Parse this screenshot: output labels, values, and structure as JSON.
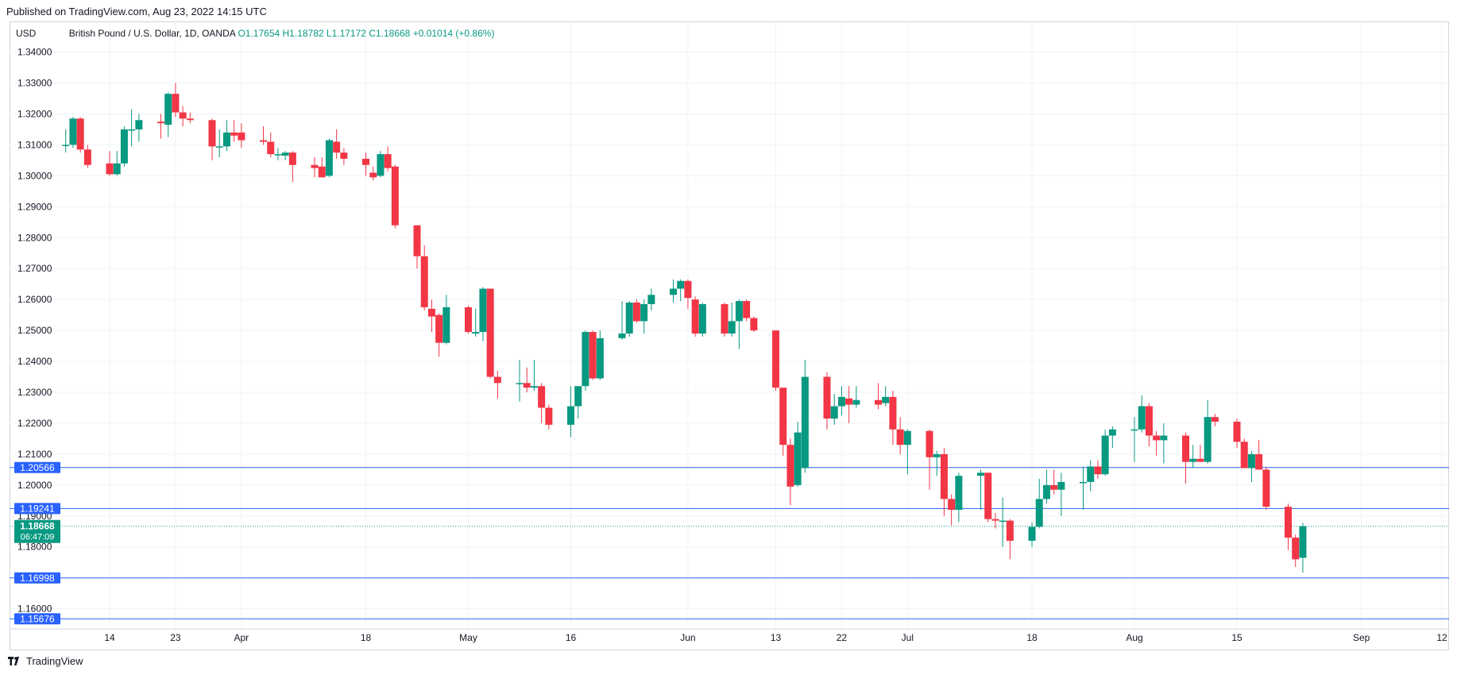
{
  "header": {
    "published": "Published on TradingView.com, Aug 23, 2022 14:15 UTC"
  },
  "legend": {
    "currency": "USD",
    "symbol": "British Pound / U.S. Dollar, 1D, OANDA",
    "open": "O1.17654",
    "high": "H1.18782",
    "low": "L1.17172",
    "close": "C1.18668",
    "change": "+0.01014 (+0.86%)"
  },
  "footer": {
    "brand": "TradingView"
  },
  "colors": {
    "up": "#089981",
    "down": "#f23645",
    "hline": "#2962ff",
    "label_bg": "#2962ff",
    "grid": "#f0f3fa",
    "current_price": "#089981"
  },
  "chart_data": {
    "type": "candlestick",
    "ylim": [
      1.154,
      1.344
    ],
    "y_ticks": [
      "1.34000",
      "1.33000",
      "1.32000",
      "1.31000",
      "1.30000",
      "1.29000",
      "1.28000",
      "1.27000",
      "1.26000",
      "1.25000",
      "1.24000",
      "1.23000",
      "1.22000",
      "1.21000",
      "1.20000",
      "1.19000",
      "1.18000",
      "1.17000",
      "1.16000"
    ],
    "x_ticks": [
      {
        "date": "2022-03-14",
        "label": "14"
      },
      {
        "date": "2022-03-23",
        "label": "23"
      },
      {
        "date": "2022-04-01",
        "label": "Apr"
      },
      {
        "date": "2022-04-18",
        "label": "18"
      },
      {
        "date": "2022-05-02",
        "label": "May"
      },
      {
        "date": "2022-05-16",
        "label": "16"
      },
      {
        "date": "2022-06-01",
        "label": "Jun"
      },
      {
        "date": "2022-06-13",
        "label": "13"
      },
      {
        "date": "2022-06-22",
        "label": "22"
      },
      {
        "date": "2022-07-01",
        "label": "Jul"
      },
      {
        "date": "2022-07-18",
        "label": "18"
      },
      {
        "date": "2022-08-01",
        "label": "Aug"
      },
      {
        "date": "2022-08-15",
        "label": "15"
      },
      {
        "date": "2022-09-01",
        "label": "Sep"
      },
      {
        "date": "2022-09-12",
        "label": "12"
      }
    ],
    "horizontal_lines": [
      {
        "value": 1.20566,
        "label": "1.20566"
      },
      {
        "value": 1.19241,
        "label": "1.19241"
      },
      {
        "value": 1.16998,
        "label": "1.16998"
      },
      {
        "value": 1.15676,
        "label": "1.15676"
      }
    ],
    "current_price": {
      "value": 1.18668,
      "label": "1.18668",
      "countdown": "06:47:09"
    },
    "candles": [
      {
        "date": "2022-03-08",
        "o": 1.31,
        "h": 1.315,
        "l": 1.3075,
        "c": 1.31
      },
      {
        "date": "2022-03-09",
        "o": 1.31,
        "h": 1.319,
        "l": 1.309,
        "c": 1.3185
      },
      {
        "date": "2022-03-10",
        "o": 1.3185,
        "h": 1.319,
        "l": 1.3075,
        "c": 1.3085
      },
      {
        "date": "2022-03-11",
        "o": 1.3085,
        "h": 1.31,
        "l": 1.3025,
        "c": 1.3035
      },
      {
        "date": "2022-03-14",
        "o": 1.304,
        "h": 1.308,
        "l": 1.3,
        "c": 1.3005
      },
      {
        "date": "2022-03-15",
        "o": 1.3005,
        "h": 1.308,
        "l": 1.3,
        "c": 1.304
      },
      {
        "date": "2022-03-16",
        "o": 1.304,
        "h": 1.316,
        "l": 1.303,
        "c": 1.315
      },
      {
        "date": "2022-03-17",
        "o": 1.315,
        "h": 1.3215,
        "l": 1.3095,
        "c": 1.315
      },
      {
        "date": "2022-03-18",
        "o": 1.315,
        "h": 1.32,
        "l": 1.311,
        "c": 1.318
      },
      {
        "date": "2022-03-21",
        "o": 1.3175,
        "h": 1.32,
        "l": 1.312,
        "c": 1.317
      },
      {
        "date": "2022-03-22",
        "o": 1.3165,
        "h": 1.327,
        "l": 1.3125,
        "c": 1.3265
      },
      {
        "date": "2022-03-23",
        "o": 1.3265,
        "h": 1.33,
        "l": 1.319,
        "c": 1.3205
      },
      {
        "date": "2022-03-24",
        "o": 1.3205,
        "h": 1.3225,
        "l": 1.316,
        "c": 1.3185
      },
      {
        "date": "2022-03-25",
        "o": 1.3185,
        "h": 1.3205,
        "l": 1.317,
        "c": 1.318
      },
      {
        "date": "2022-03-28",
        "o": 1.318,
        "h": 1.3185,
        "l": 1.305,
        "c": 1.3095
      },
      {
        "date": "2022-03-29",
        "o": 1.3095,
        "h": 1.315,
        "l": 1.306,
        "c": 1.3095
      },
      {
        "date": "2022-03-30",
        "o": 1.3095,
        "h": 1.318,
        "l": 1.308,
        "c": 1.314
      },
      {
        "date": "2022-03-31",
        "o": 1.314,
        "h": 1.318,
        "l": 1.311,
        "c": 1.313
      },
      {
        "date": "2022-04-01",
        "o": 1.314,
        "h": 1.317,
        "l": 1.309,
        "c": 1.3115
      },
      {
        "date": "2022-04-04",
        "o": 1.3115,
        "h": 1.316,
        "l": 1.31,
        "c": 1.311
      },
      {
        "date": "2022-04-05",
        "o": 1.311,
        "h": 1.314,
        "l": 1.306,
        "c": 1.307
      },
      {
        "date": "2022-04-06",
        "o": 1.307,
        "h": 1.309,
        "l": 1.305,
        "c": 1.307
      },
      {
        "date": "2022-04-07",
        "o": 1.3065,
        "h": 1.308,
        "l": 1.305,
        "c": 1.3075
      },
      {
        "date": "2022-04-08",
        "o": 1.3075,
        "h": 1.308,
        "l": 1.298,
        "c": 1.3035
      },
      {
        "date": "2022-04-11",
        "o": 1.3035,
        "h": 1.306,
        "l": 1.2995,
        "c": 1.3025
      },
      {
        "date": "2022-04-12",
        "o": 1.303,
        "h": 1.306,
        "l": 1.2995,
        "c": 1.2995
      },
      {
        "date": "2022-04-13",
        "o": 1.3,
        "h": 1.312,
        "l": 1.2995,
        "c": 1.3115
      },
      {
        "date": "2022-04-14",
        "o": 1.311,
        "h": 1.315,
        "l": 1.3055,
        "c": 1.3075
      },
      {
        "date": "2022-04-15",
        "o": 1.3075,
        "h": 1.309,
        "l": 1.3035,
        "c": 1.3055
      },
      {
        "date": "2022-04-18",
        "o": 1.3055,
        "h": 1.3075,
        "l": 1.3,
        "c": 1.3035
      },
      {
        "date": "2022-04-19",
        "o": 1.301,
        "h": 1.303,
        "l": 1.2985,
        "c": 1.2995
      },
      {
        "date": "2022-04-20",
        "o": 1.3,
        "h": 1.308,
        "l": 1.2995,
        "c": 1.307
      },
      {
        "date": "2022-04-21",
        "o": 1.307,
        "h": 1.3095,
        "l": 1.3015,
        "c": 1.3025
      },
      {
        "date": "2022-04-22",
        "o": 1.303,
        "h": 1.3035,
        "l": 1.283,
        "c": 1.284
      },
      {
        "date": "2022-04-25",
        "o": 1.284,
        "h": 1.284,
        "l": 1.27,
        "c": 1.274
      },
      {
        "date": "2022-04-26",
        "o": 1.274,
        "h": 1.2775,
        "l": 1.2565,
        "c": 1.2575
      },
      {
        "date": "2022-04-27",
        "o": 1.257,
        "h": 1.26,
        "l": 1.2495,
        "c": 1.2545
      },
      {
        "date": "2022-04-28",
        "o": 1.255,
        "h": 1.2555,
        "l": 1.2415,
        "c": 1.246
      },
      {
        "date": "2022-04-29",
        "o": 1.246,
        "h": 1.2615,
        "l": 1.2455,
        "c": 1.2575
      },
      {
        "date": "2022-05-02",
        "o": 1.2575,
        "h": 1.258,
        "l": 1.249,
        "c": 1.2495
      },
      {
        "date": "2022-05-03",
        "o": 1.249,
        "h": 1.257,
        "l": 1.248,
        "c": 1.2495
      },
      {
        "date": "2022-05-04",
        "o": 1.2495,
        "h": 1.264,
        "l": 1.2465,
        "c": 1.2635
      },
      {
        "date": "2022-05-05",
        "o": 1.2635,
        "h": 1.2635,
        "l": 1.2345,
        "c": 1.235
      },
      {
        "date": "2022-05-06",
        "o": 1.235,
        "h": 1.237,
        "l": 1.228,
        "c": 1.233
      },
      {
        "date": "2022-05-09",
        "o": 1.233,
        "h": 1.2405,
        "l": 1.227,
        "c": 1.233
      },
      {
        "date": "2022-05-10",
        "o": 1.233,
        "h": 1.238,
        "l": 1.23,
        "c": 1.2315
      },
      {
        "date": "2022-05-11",
        "o": 1.2315,
        "h": 1.2405,
        "l": 1.2305,
        "c": 1.232
      },
      {
        "date": "2022-05-12",
        "o": 1.232,
        "h": 1.233,
        "l": 1.22,
        "c": 1.225
      },
      {
        "date": "2022-05-13",
        "o": 1.225,
        "h": 1.226,
        "l": 1.218,
        "c": 1.2195
      },
      {
        "date": "2022-05-16",
        "o": 1.2195,
        "h": 1.232,
        "l": 1.2155,
        "c": 1.2255
      },
      {
        "date": "2022-05-17",
        "o": 1.2255,
        "h": 1.2315,
        "l": 1.2215,
        "c": 1.232
      },
      {
        "date": "2022-05-18",
        "o": 1.232,
        "h": 1.25,
        "l": 1.2305,
        "c": 1.2495
      },
      {
        "date": "2022-05-19",
        "o": 1.2495,
        "h": 1.25,
        "l": 1.234,
        "c": 1.2345
      },
      {
        "date": "2022-05-20",
        "o": 1.2345,
        "h": 1.25,
        "l": 1.234,
        "c": 1.2475
      },
      {
        "date": "2022-05-23",
        "o": 1.2475,
        "h": 1.2595,
        "l": 1.247,
        "c": 1.249
      },
      {
        "date": "2022-05-24",
        "o": 1.249,
        "h": 1.2595,
        "l": 1.248,
        "c": 1.259
      },
      {
        "date": "2022-05-25",
        "o": 1.259,
        "h": 1.26,
        "l": 1.2525,
        "c": 1.253
      },
      {
        "date": "2022-05-26",
        "o": 1.253,
        "h": 1.26,
        "l": 1.249,
        "c": 1.2585
      },
      {
        "date": "2022-05-27",
        "o": 1.2585,
        "h": 1.2635,
        "l": 1.2565,
        "c": 1.2615
      },
      {
        "date": "2022-05-30",
        "o": 1.2615,
        "h": 1.2665,
        "l": 1.259,
        "c": 1.2635
      },
      {
        "date": "2022-05-31",
        "o": 1.2635,
        "h": 1.2665,
        "l": 1.2595,
        "c": 1.266
      },
      {
        "date": "2022-06-01",
        "o": 1.266,
        "h": 1.2665,
        "l": 1.257,
        "c": 1.2605
      },
      {
        "date": "2022-06-02",
        "o": 1.26,
        "h": 1.261,
        "l": 1.248,
        "c": 1.249
      },
      {
        "date": "2022-06-03",
        "o": 1.249,
        "h": 1.259,
        "l": 1.248,
        "c": 1.2585
      },
      {
        "date": "2022-06-06",
        "o": 1.2585,
        "h": 1.259,
        "l": 1.248,
        "c": 1.249
      },
      {
        "date": "2022-06-07",
        "o": 1.249,
        "h": 1.259,
        "l": 1.248,
        "c": 1.253
      },
      {
        "date": "2022-06-08",
        "o": 1.253,
        "h": 1.26,
        "l": 1.244,
        "c": 1.2595
      },
      {
        "date": "2022-06-09",
        "o": 1.2595,
        "h": 1.26,
        "l": 1.253,
        "c": 1.254
      },
      {
        "date": "2022-06-10",
        "o": 1.254,
        "h": 1.2545,
        "l": 1.2495,
        "c": 1.25
      },
      {
        "date": "2022-06-13",
        "o": 1.25,
        "h": 1.25,
        "l": 1.2305,
        "c": 1.2315
      },
      {
        "date": "2022-06-14",
        "o": 1.2315,
        "h": 1.2315,
        "l": 1.2095,
        "c": 1.213
      },
      {
        "date": "2022-06-15",
        "o": 1.213,
        "h": 1.215,
        "l": 1.1935,
        "c": 1.1995
      },
      {
        "date": "2022-06-16",
        "o": 1.2,
        "h": 1.2205,
        "l": 1.1995,
        "c": 1.217
      },
      {
        "date": "2022-06-17",
        "o": 1.2055,
        "h": 1.2405,
        "l": 1.204,
        "c": 1.235
      },
      {
        "date": "2022-06-20",
        "o": 1.235,
        "h": 1.2365,
        "l": 1.218,
        "c": 1.2215
      },
      {
        "date": "2022-06-21",
        "o": 1.2215,
        "h": 1.2295,
        "l": 1.2195,
        "c": 1.2255
      },
      {
        "date": "2022-06-22",
        "o": 1.2255,
        "h": 1.232,
        "l": 1.2225,
        "c": 1.2285
      },
      {
        "date": "2022-06-23",
        "o": 1.228,
        "h": 1.232,
        "l": 1.22,
        "c": 1.226
      },
      {
        "date": "2022-06-24",
        "o": 1.226,
        "h": 1.232,
        "l": 1.225,
        "c": 1.2275
      },
      {
        "date": "2022-06-27",
        "o": 1.2275,
        "h": 1.233,
        "l": 1.2245,
        "c": 1.226
      },
      {
        "date": "2022-06-28",
        "o": 1.2265,
        "h": 1.232,
        "l": 1.2255,
        "c": 1.2285
      },
      {
        "date": "2022-06-29",
        "o": 1.2285,
        "h": 1.2305,
        "l": 1.213,
        "c": 1.218
      },
      {
        "date": "2022-06-30",
        "o": 1.218,
        "h": 1.222,
        "l": 1.21,
        "c": 1.213
      },
      {
        "date": "2022-07-01",
        "o": 1.213,
        "h": 1.218,
        "l": 1.2035,
        "c": 1.2175
      },
      {
        "date": "2022-07-04",
        "o": 1.2175,
        "h": 1.218,
        "l": 1.1985,
        "c": 1.209
      },
      {
        "date": "2022-07-05",
        "o": 1.209,
        "h": 1.211,
        "l": 1.203,
        "c": 1.21
      },
      {
        "date": "2022-07-06",
        "o": 1.21,
        "h": 1.212,
        "l": 1.19,
        "c": 1.1955
      },
      {
        "date": "2022-07-07",
        "o": 1.1955,
        "h": 1.197,
        "l": 1.187,
        "c": 1.192
      },
      {
        "date": "2022-07-08",
        "o": 1.192,
        "h": 1.204,
        "l": 1.188,
        "c": 1.203
      },
      {
        "date": "2022-07-11",
        "o": 1.203,
        "h": 1.205,
        "l": 1.192,
        "c": 1.204
      },
      {
        "date": "2022-07-12",
        "o": 1.204,
        "h": 1.204,
        "l": 1.188,
        "c": 1.189
      },
      {
        "date": "2022-07-13",
        "o": 1.189,
        "h": 1.191,
        "l": 1.186,
        "c": 1.1885
      },
      {
        "date": "2022-07-14",
        "o": 1.1885,
        "h": 1.196,
        "l": 1.18,
        "c": 1.1885
      },
      {
        "date": "2022-07-15",
        "o": 1.1885,
        "h": 1.189,
        "l": 1.176,
        "c": 1.182
      },
      {
        "date": "2022-07-18",
        "o": 1.182,
        "h": 1.188,
        "l": 1.18,
        "c": 1.1865
      },
      {
        "date": "2022-07-19",
        "o": 1.1865,
        "h": 1.202,
        "l": 1.186,
        "c": 1.1955
      },
      {
        "date": "2022-07-20",
        "o": 1.1955,
        "h": 1.205,
        "l": 1.194,
        "c": 1.2
      },
      {
        "date": "2022-07-21",
        "o": 1.2,
        "h": 1.205,
        "l": 1.197,
        "c": 1.1985
      },
      {
        "date": "2022-07-22",
        "o": 1.1985,
        "h": 1.204,
        "l": 1.19,
        "c": 1.201
      },
      {
        "date": "2022-07-25",
        "o": 1.201,
        "h": 1.206,
        "l": 1.192,
        "c": 1.201
      },
      {
        "date": "2022-07-26",
        "o": 1.201,
        "h": 1.208,
        "l": 1.198,
        "c": 1.206
      },
      {
        "date": "2022-07-27",
        "o": 1.206,
        "h": 1.208,
        "l": 1.202,
        "c": 1.2035
      },
      {
        "date": "2022-07-28",
        "o": 1.2035,
        "h": 1.218,
        "l": 1.203,
        "c": 1.216
      },
      {
        "date": "2022-07-29",
        "o": 1.216,
        "h": 1.219,
        "l": 1.212,
        "c": 1.218
      },
      {
        "date": "2022-08-01",
        "o": 1.218,
        "h": 1.222,
        "l": 1.2075,
        "c": 1.218
      },
      {
        "date": "2022-08-02",
        "o": 1.218,
        "h": 1.229,
        "l": 1.217,
        "c": 1.2255
      },
      {
        "date": "2022-08-03",
        "o": 1.2255,
        "h": 1.2265,
        "l": 1.2125,
        "c": 1.216
      },
      {
        "date": "2022-08-04",
        "o": 1.216,
        "h": 1.2175,
        "l": 1.2095,
        "c": 1.2145
      },
      {
        "date": "2022-08-05",
        "o": 1.2145,
        "h": 1.22,
        "l": 1.207,
        "c": 1.216
      },
      {
        "date": "2022-08-08",
        "o": 1.216,
        "h": 1.217,
        "l": 1.2005,
        "c": 1.2075
      },
      {
        "date": "2022-08-09",
        "o": 1.2075,
        "h": 1.213,
        "l": 1.2055,
        "c": 1.2085
      },
      {
        "date": "2022-08-10",
        "o": 1.2085,
        "h": 1.213,
        "l": 1.2075,
        "c": 1.2075
      },
      {
        "date": "2022-08-11",
        "o": 1.2075,
        "h": 1.2275,
        "l": 1.207,
        "c": 1.222
      },
      {
        "date": "2022-08-12",
        "o": 1.222,
        "h": 1.223,
        "l": 1.219,
        "c": 1.2205
      },
      {
        "date": "2022-08-15",
        "o": 1.2205,
        "h": 1.2215,
        "l": 1.212,
        "c": 1.214
      },
      {
        "date": "2022-08-16",
        "o": 1.214,
        "h": 1.215,
        "l": 1.2055,
        "c": 1.2055
      },
      {
        "date": "2022-08-17",
        "o": 1.2055,
        "h": 1.211,
        "l": 1.201,
        "c": 1.21
      },
      {
        "date": "2022-08-18",
        "o": 1.21,
        "h": 1.2145,
        "l": 1.205,
        "c": 1.205
      },
      {
        "date": "2022-08-19",
        "o": 1.205,
        "h": 1.206,
        "l": 1.192,
        "c": 1.193
      },
      {
        "date": "2022-08-22",
        "o": 1.193,
        "h": 1.194,
        "l": 1.179,
        "c": 1.183
      },
      {
        "date": "2022-08-23",
        "o": 1.183,
        "h": 1.184,
        "l": 1.1735,
        "c": 1.176
      },
      {
        "date": "2022-08-24",
        "o": 1.1765,
        "h": 1.1878,
        "l": 1.1717,
        "c": 1.1867
      }
    ]
  }
}
